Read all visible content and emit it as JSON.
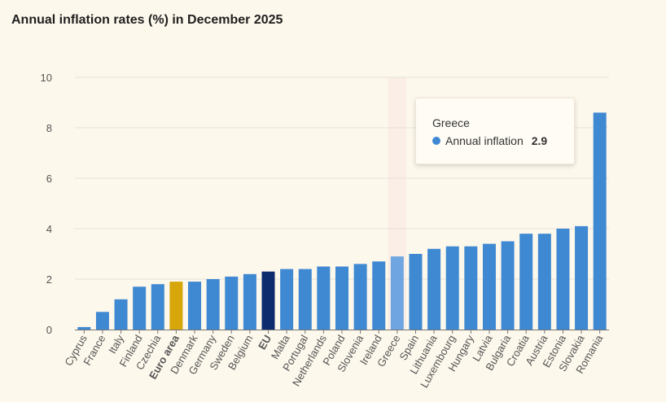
{
  "title": "Annual inflation rates (%) in December 2025",
  "colors": {
    "background": "#fdf8ec",
    "bar": "#3f88d2",
    "euro_area": "#d6a60a",
    "eu": "#0c2a6e",
    "hovered": "#6fa6e2",
    "highlight_band": "#fbeee6",
    "grid": "#e6e2d8",
    "axis_text": "#555555"
  },
  "tooltip": {
    "country": "Greece",
    "series_label": "Annual inflation",
    "value": "2.9",
    "dot_color": "#3f88d2"
  },
  "chart_data": {
    "type": "bar",
    "title": "Annual inflation rates (%) in December 2025",
    "categories": [
      "Cyprus",
      "France",
      "Italy",
      "Finland",
      "Czechia",
      "Euro area",
      "Denmark",
      "Germany",
      "Sweden",
      "Belgium",
      "EU",
      "Malta",
      "Portugal",
      "Netherlands",
      "Poland",
      "Slovenia",
      "Ireland",
      "Greece",
      "Spain",
      "Lithuania",
      "Luxembourg",
      "Hungary",
      "Latvia",
      "Bulgaria",
      "Croatia",
      "Austria",
      "Estonia",
      "Slovakia",
      "Romania"
    ],
    "series": [
      {
        "name": "Annual inflation",
        "values": [
          0.1,
          0.7,
          1.2,
          1.7,
          1.8,
          1.9,
          1.9,
          2.0,
          2.1,
          2.2,
          2.3,
          2.4,
          2.4,
          2.5,
          2.5,
          2.6,
          2.7,
          2.9,
          3.0,
          3.2,
          3.3,
          3.3,
          3.4,
          3.5,
          3.8,
          3.8,
          4.0,
          4.1,
          8.6
        ]
      }
    ],
    "bold_categories": [
      "Euro area",
      "EU"
    ],
    "highlighted_category": "Greece",
    "yticks": [
      0,
      2,
      4,
      6,
      8,
      10
    ],
    "ylim": [
      0,
      10
    ],
    "xlabel": "",
    "ylabel": "",
    "grid": true,
    "legend": "none"
  }
}
